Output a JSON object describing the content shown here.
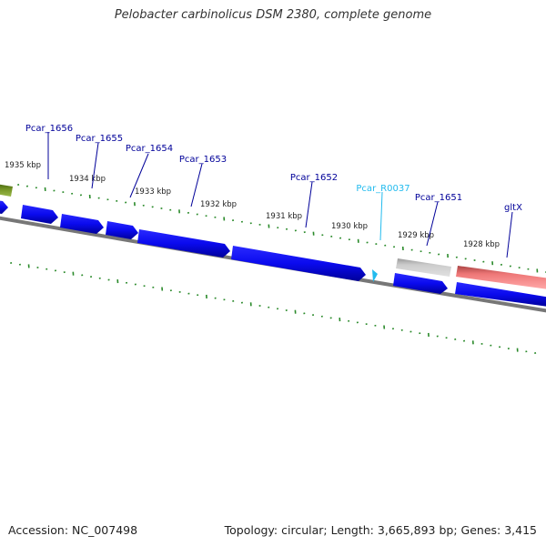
{
  "title": "Pelobacter carbinolicus DSM 2380, complete genome",
  "footer": {
    "accession": "Accession: NC_007498",
    "summary": "Topology: circular; Length: 3,665,893 bp; Genes: 3,415"
  },
  "colors": {
    "cds": "#0a0aee",
    "rna": "#22bbee",
    "pseudo": "#aaaaaa",
    "highlight": "#ee7777",
    "first_gene": "#6b8c1a",
    "tick": "#2a8a2a",
    "label": "#000099",
    "backbone": "#888888"
  },
  "ruler_labels": [
    {
      "text": "1935 kbp"
    },
    {
      "text": "1934 kbp"
    },
    {
      "text": "1933 kbp"
    },
    {
      "text": "1932 kbp"
    },
    {
      "text": "1931 kbp"
    },
    {
      "text": "1930 kbp"
    },
    {
      "text": "1929 kbp"
    },
    {
      "text": "1928 kbp"
    }
  ],
  "gene_labels": [
    {
      "text": "Pcar_1656",
      "kind": "cds"
    },
    {
      "text": "Pcar_1655",
      "kind": "cds"
    },
    {
      "text": "Pcar_1654",
      "kind": "cds"
    },
    {
      "text": "Pcar_1653",
      "kind": "cds"
    },
    {
      "text": "Pcar_1652",
      "kind": "cds"
    },
    {
      "text": "Pcar_R0037",
      "kind": "rna"
    },
    {
      "text": "Pcar_1651",
      "kind": "cds"
    },
    {
      "text": "gltX",
      "kind": "cds"
    }
  ]
}
